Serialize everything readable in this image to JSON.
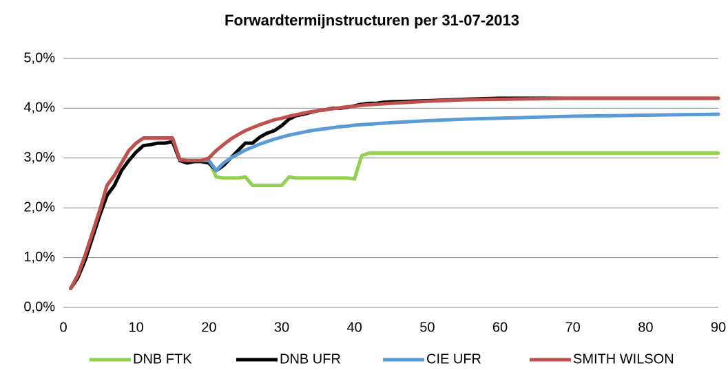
{
  "chart_data": {
    "type": "line",
    "title": "Forwardtermijnstructuren per 31-07-2013",
    "x": [
      1,
      2,
      3,
      4,
      5,
      6,
      7,
      8,
      9,
      10,
      11,
      12,
      13,
      14,
      15,
      16,
      17,
      18,
      19,
      20,
      21,
      22,
      23,
      24,
      25,
      26,
      27,
      28,
      29,
      30,
      31,
      32,
      33,
      34,
      35,
      36,
      37,
      38,
      39,
      40,
      41,
      42,
      43,
      44,
      45,
      50,
      55,
      60,
      65,
      70,
      75,
      80,
      85,
      90
    ],
    "series": [
      {
        "name": "DNB FTK",
        "color": "#92d050",
        "values": [
          0.38,
          0.65,
          1.05,
          1.5,
          1.95,
          2.45,
          2.65,
          2.9,
          3.15,
          3.3,
          3.4,
          3.4,
          3.4,
          3.4,
          3.4,
          2.97,
          2.95,
          2.95,
          2.95,
          2.95,
          2.62,
          2.6,
          2.6,
          2.6,
          2.62,
          2.45,
          2.45,
          2.45,
          2.45,
          2.45,
          2.62,
          2.6,
          2.6,
          2.6,
          2.6,
          2.6,
          2.6,
          2.6,
          2.6,
          2.58,
          3.05,
          3.1,
          3.1,
          3.1,
          3.1,
          3.1,
          3.1,
          3.1,
          3.1,
          3.1,
          3.1,
          3.1,
          3.1,
          3.1
        ]
      },
      {
        "name": "DNB UFR",
        "color": "#000000",
        "values": [
          0.38,
          0.6,
          0.95,
          1.4,
          1.85,
          2.25,
          2.45,
          2.75,
          2.95,
          3.12,
          3.25,
          3.27,
          3.3,
          3.3,
          3.33,
          2.95,
          2.9,
          2.93,
          2.93,
          2.9,
          2.75,
          2.85,
          3.0,
          3.15,
          3.3,
          3.3,
          3.42,
          3.5,
          3.55,
          3.65,
          3.78,
          3.85,
          3.88,
          3.92,
          3.95,
          3.97,
          4.0,
          4.0,
          4.02,
          4.05,
          4.08,
          4.1,
          4.1,
          4.12,
          4.13,
          4.15,
          4.18,
          4.2,
          4.2,
          4.2,
          4.2,
          4.2,
          4.2,
          4.2
        ]
      },
      {
        "name": "CIE UFR",
        "color": "#5b9bd5",
        "values": [
          0.38,
          0.65,
          1.05,
          1.5,
          1.95,
          2.45,
          2.65,
          2.9,
          3.15,
          3.3,
          3.4,
          3.4,
          3.4,
          3.4,
          3.4,
          2.97,
          2.95,
          2.95,
          2.95,
          2.95,
          2.75,
          2.9,
          3.0,
          3.08,
          3.16,
          3.22,
          3.28,
          3.33,
          3.38,
          3.42,
          3.46,
          3.49,
          3.52,
          3.55,
          3.57,
          3.59,
          3.61,
          3.63,
          3.64,
          3.66,
          3.67,
          3.68,
          3.69,
          3.7,
          3.71,
          3.75,
          3.78,
          3.8,
          3.82,
          3.84,
          3.85,
          3.86,
          3.87,
          3.88
        ]
      },
      {
        "name": "SMITH WILSON",
        "color": "#c0504d",
        "values": [
          0.38,
          0.65,
          1.05,
          1.5,
          1.95,
          2.45,
          2.65,
          2.9,
          3.15,
          3.3,
          3.4,
          3.4,
          3.4,
          3.4,
          3.4,
          2.97,
          2.95,
          2.95,
          2.95,
          3.0,
          3.15,
          3.27,
          3.38,
          3.47,
          3.55,
          3.61,
          3.67,
          3.72,
          3.77,
          3.8,
          3.84,
          3.87,
          3.9,
          3.93,
          3.95,
          3.97,
          3.99,
          4.01,
          4.03,
          4.04,
          4.06,
          4.07,
          4.08,
          4.09,
          4.1,
          4.14,
          4.17,
          4.18,
          4.19,
          4.2,
          4.2,
          4.2,
          4.2,
          4.2
        ]
      }
    ],
    "xlim": [
      0,
      90
    ],
    "xticks": [
      0,
      10,
      20,
      30,
      40,
      50,
      60,
      70,
      80,
      90
    ],
    "ylim": [
      0,
      5
    ],
    "yticks": [
      {
        "value": 0,
        "label": "0,0%"
      },
      {
        "value": 1,
        "label": "1,0%"
      },
      {
        "value": 2,
        "label": "2,0%"
      },
      {
        "value": 3,
        "label": "3,0%"
      },
      {
        "value": 4,
        "label": "4,0%"
      },
      {
        "value": 5,
        "label": "5,0%"
      }
    ],
    "grid": true,
    "legend": "bottom"
  }
}
